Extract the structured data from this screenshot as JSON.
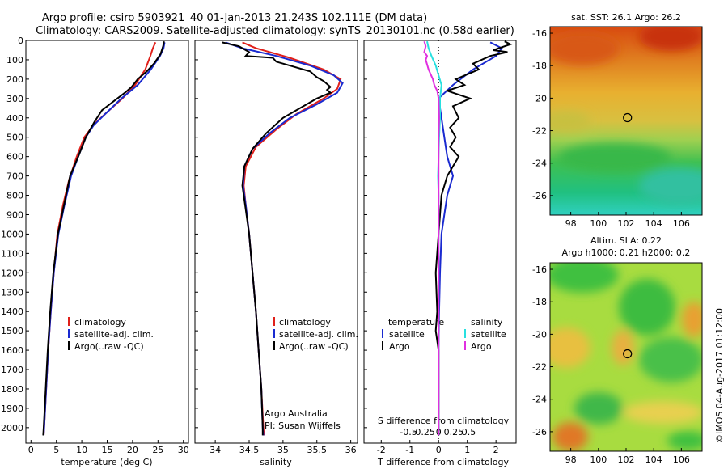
{
  "header": {
    "line1": "Argo profile: csiro 5903921_40 01-Jan-2013 21.243S 102.111E (DM data)",
    "line2": "Climatology: CARS2009. Satellite-adjusted climatology: synTS_20130101.nc (0.58d earlier)"
  },
  "side_label": "©IMOS 04-Aug-2017 01:12:00",
  "colors": {
    "climatology": "#e0201a",
    "satellite": "#1a2ad0",
    "argo": "#000000",
    "sat_salinity": "#28e0e0",
    "argo_salinity": "#e030e0"
  },
  "chart_data": [
    {
      "type": "line",
      "id": "temperature",
      "xlabel": "temperature (deg C)",
      "xlim": [
        -1,
        31
      ],
      "ylim": [
        2080,
        0
      ],
      "y_ticks": [
        0,
        100,
        200,
        300,
        400,
        500,
        600,
        700,
        800,
        900,
        1000,
        1100,
        1200,
        1300,
        1400,
        1500,
        1600,
        1700,
        1800,
        1900,
        2000
      ],
      "x_ticks": [
        0,
        5,
        10,
        15,
        20,
        25,
        30
      ],
      "legend": [
        "climatology",
        "satellite-adj. clim.",
        "Argo(..raw -QC)"
      ],
      "series": [
        {
          "name": "climatology",
          "points": [
            [
              24.5,
              10
            ],
            [
              24,
              40
            ],
            [
              23.5,
              80
            ],
            [
              22.5,
              150
            ],
            [
              20.5,
              230
            ],
            [
              18,
              300
            ],
            [
              15,
              370
            ],
            [
              12.5,
              430
            ],
            [
              10.5,
              500
            ],
            [
              9,
              600
            ],
            [
              7.5,
              720
            ],
            [
              6.3,
              850
            ],
            [
              5.2,
              1000
            ],
            [
              4.5,
              1200
            ],
            [
              3.9,
              1400
            ],
            [
              3.4,
              1600
            ],
            [
              3,
              1800
            ],
            [
              2.6,
              2000
            ],
            [
              2.5,
              2040
            ]
          ]
        },
        {
          "name": "satellite-adj. clim.",
          "points": [
            [
              26.3,
              10
            ],
            [
              26.1,
              40
            ],
            [
              25.4,
              80
            ],
            [
              23.6,
              150
            ],
            [
              21,
              230
            ],
            [
              17.8,
              300
            ],
            [
              14.6,
              380
            ],
            [
              12.3,
              440
            ],
            [
              10.8,
              500
            ],
            [
              9.3,
              600
            ],
            [
              7.9,
              700
            ],
            [
              6.6,
              850
            ],
            [
              5.4,
              1000
            ],
            [
              4.5,
              1200
            ],
            [
              3.9,
              1400
            ],
            [
              3.4,
              1600
            ],
            [
              3,
              1800
            ],
            [
              2.6,
              2000
            ],
            [
              2.5,
              2040
            ]
          ]
        },
        {
          "name": "Argo(..raw -QC)",
          "points": [
            [
              26.2,
              5
            ],
            [
              26,
              30
            ],
            [
              25.5,
              70
            ],
            [
              24.2,
              120
            ],
            [
              22.8,
              160
            ],
            [
              21,
              200
            ],
            [
              19.8,
              240
            ],
            [
              18.5,
              270
            ],
            [
              16.5,
              310
            ],
            [
              14,
              360
            ],
            [
              12.5,
              420
            ],
            [
              10.8,
              500
            ],
            [
              9.3,
              600
            ],
            [
              7.7,
              700
            ],
            [
              6.5,
              850
            ],
            [
              5.3,
              1000
            ],
            [
              4.4,
              1200
            ],
            [
              3.8,
              1400
            ],
            [
              3.3,
              1600
            ],
            [
              2.9,
              1800
            ],
            [
              2.5,
              2000
            ],
            [
              2.4,
              2040
            ]
          ]
        }
      ]
    },
    {
      "type": "line",
      "id": "salinity",
      "xlabel": "salinity",
      "xlim": [
        33.7,
        36.1
      ],
      "ylim": [
        2080,
        0
      ],
      "x_ticks": [
        34,
        34.5,
        35,
        35.5,
        36
      ],
      "legend": [
        "climatology",
        "satellite-adj. clim.",
        "Argo(..raw -QC)"
      ],
      "annotation": [
        "Argo Australia",
        "PI: Susan Wijffels"
      ],
      "series": [
        {
          "name": "climatology",
          "points": [
            [
              34.4,
              10
            ],
            [
              34.6,
              40
            ],
            [
              35.1,
              90
            ],
            [
              35.6,
              150
            ],
            [
              35.85,
              200
            ],
            [
              35.8,
              250
            ],
            [
              35.6,
              300
            ],
            [
              35.2,
              380
            ],
            [
              34.9,
              460
            ],
            [
              34.6,
              550
            ],
            [
              34.45,
              650
            ],
            [
              34.42,
              750
            ],
            [
              34.45,
              850
            ],
            [
              34.5,
              1000
            ],
            [
              34.55,
              1200
            ],
            [
              34.6,
              1400
            ],
            [
              34.64,
              1600
            ],
            [
              34.68,
              1800
            ],
            [
              34.71,
              2000
            ],
            [
              34.72,
              2040
            ]
          ]
        },
        {
          "name": "satellite-adj. clim.",
          "points": [
            [
              34.15,
              10
            ],
            [
              34.4,
              40
            ],
            [
              34.9,
              80
            ],
            [
              35.4,
              130
            ],
            [
              35.75,
              180
            ],
            [
              35.88,
              220
            ],
            [
              35.8,
              270
            ],
            [
              35.5,
              330
            ],
            [
              35.1,
              400
            ],
            [
              34.8,
              480
            ],
            [
              34.55,
              560
            ],
            [
              34.43,
              650
            ],
            [
              34.41,
              750
            ],
            [
              34.45,
              850
            ],
            [
              34.5,
              1000
            ],
            [
              34.55,
              1200
            ],
            [
              34.6,
              1400
            ],
            [
              34.64,
              1600
            ],
            [
              34.68,
              1800
            ],
            [
              34.7,
              2000
            ],
            [
              34.71,
              2040
            ]
          ]
        },
        {
          "name": "Argo(..raw -QC)",
          "points": [
            [
              34.1,
              10
            ],
            [
              34.35,
              30
            ],
            [
              34.5,
              60
            ],
            [
              34.45,
              80
            ],
            [
              34.85,
              90
            ],
            [
              34.9,
              110
            ],
            [
              35.1,
              130
            ],
            [
              35.4,
              160
            ],
            [
              35.5,
              190
            ],
            [
              35.6,
              210
            ],
            [
              35.7,
              240
            ],
            [
              35.65,
              255
            ],
            [
              35.7,
              270
            ],
            [
              35.5,
              300
            ],
            [
              35.3,
              340
            ],
            [
              35,
              400
            ],
            [
              34.75,
              480
            ],
            [
              34.55,
              560
            ],
            [
              34.43,
              650
            ],
            [
              34.4,
              750
            ],
            [
              34.44,
              850
            ],
            [
              34.5,
              1000
            ],
            [
              34.55,
              1200
            ],
            [
              34.6,
              1400
            ],
            [
              34.64,
              1600
            ],
            [
              34.68,
              1800
            ],
            [
              34.7,
              2000
            ],
            [
              34.7,
              2040
            ]
          ]
        }
      ]
    },
    {
      "type": "line",
      "id": "difference",
      "xlabel": "T difference from climatology",
      "xlabel_top": "S difference from climatology",
      "xlim": [
        -2.6,
        2.7
      ],
      "ylim": [
        2080,
        0
      ],
      "x_ticks": [
        -2,
        -1,
        0,
        1,
        2
      ],
      "s_ticks": [
        "-0.5",
        "-0.25",
        "0",
        "0.25",
        "0.5"
      ],
      "legend_temperature": [
        "temperature",
        "satellite",
        "Argo"
      ],
      "legend_salinity": [
        "salinity",
        "satellite",
        "Argo"
      ],
      "series": [
        {
          "name": "temperature satellite",
          "points": [
            [
              1.8,
              10
            ],
            [
              2.2,
              40
            ],
            [
              2,
              80
            ],
            [
              1.2,
              150
            ],
            [
              0.5,
              230
            ],
            [
              0,
              300
            ],
            [
              0.1,
              400
            ],
            [
              0.2,
              500
            ],
            [
              0.3,
              600
            ],
            [
              0.5,
              700
            ],
            [
              0.3,
              800
            ],
            [
              0.2,
              900
            ],
            [
              0.1,
              1000
            ],
            [
              0.05,
              1200
            ],
            [
              0.02,
              1400
            ],
            [
              0,
              1600
            ],
            [
              0,
              1800
            ],
            [
              0,
              2000
            ],
            [
              0,
              2040
            ]
          ]
        },
        {
          "name": "temperature Argo",
          "points": [
            [
              2.3,
              5
            ],
            [
              2.5,
              20
            ],
            [
              1.9,
              50
            ],
            [
              2.4,
              60
            ],
            [
              1.8,
              80
            ],
            [
              1.2,
              120
            ],
            [
              1.4,
              150
            ],
            [
              0.6,
              200
            ],
            [
              0.9,
              230
            ],
            [
              0.3,
              260
            ],
            [
              1.1,
              300
            ],
            [
              0.5,
              340
            ],
            [
              0.7,
              400
            ],
            [
              0.4,
              450
            ],
            [
              0.6,
              500
            ],
            [
              0.4,
              550
            ],
            [
              0.7,
              600
            ],
            [
              0.5,
              650
            ],
            [
              0.3,
              700
            ],
            [
              0.1,
              800
            ],
            [
              0.05,
              900
            ],
            [
              0,
              1000
            ],
            [
              -0.1,
              1200
            ],
            [
              -0.05,
              1400
            ],
            [
              -0.1,
              1500
            ],
            [
              0,
              1600
            ],
            [
              0,
              1800
            ],
            [
              0,
              2000
            ],
            [
              0,
              2040
            ]
          ]
        },
        {
          "name": "salinity satellite",
          "points": [
            [
              -0.4,
              5
            ],
            [
              -0.35,
              40
            ],
            [
              -0.25,
              80
            ],
            [
              -0.1,
              130
            ],
            [
              0,
              180
            ],
            [
              0.1,
              230
            ],
            [
              0.05,
              300
            ],
            [
              0.05,
              400
            ],
            [
              0.02,
              500
            ],
            [
              0,
              600
            ],
            [
              -0.02,
              700
            ],
            [
              0,
              800
            ],
            [
              0,
              900
            ],
            [
              0,
              1000
            ],
            [
              0,
              1200
            ],
            [
              0,
              1400
            ],
            [
              0,
              1600
            ],
            [
              0,
              1800
            ],
            [
              0,
              2000
            ],
            [
              0,
              2040
            ]
          ]
        },
        {
          "name": "salinity Argo",
          "points": [
            [
              -0.5,
              5
            ],
            [
              -0.45,
              30
            ],
            [
              -0.5,
              60
            ],
            [
              -0.4,
              80
            ],
            [
              -0.45,
              100
            ],
            [
              -0.35,
              150
            ],
            [
              -0.2,
              200
            ],
            [
              -0.15,
              230
            ],
            [
              -0.05,
              260
            ],
            [
              0,
              300
            ],
            [
              0.02,
              400
            ],
            [
              0,
              500
            ],
            [
              0,
              600
            ],
            [
              0,
              700
            ],
            [
              0,
              800
            ],
            [
              0,
              900
            ],
            [
              0,
              1000
            ],
            [
              0,
              1200
            ],
            [
              0,
              1400
            ],
            [
              0,
              1600
            ],
            [
              0,
              1800
            ],
            [
              0,
              2000
            ],
            [
              0,
              2040
            ]
          ]
        }
      ]
    },
    {
      "type": "heatmap",
      "id": "sst_map",
      "title": "sat. SST: 26.1  Argo: 26.2",
      "xlim": [
        96.5,
        107.5
      ],
      "ylim": [
        -27.2,
        -15.6
      ],
      "x_ticks": [
        98,
        100,
        102,
        104,
        106
      ],
      "y_ticks": [
        -16,
        -18,
        -20,
        -22,
        -24,
        -26
      ],
      "marker": [
        102.1,
        -21.2
      ]
    },
    {
      "type": "heatmap",
      "id": "sla_map",
      "title": "Altim. SLA: 0.22",
      "subtitle": "Argo h1000: 0.21  h2000: 0.2",
      "xlim": [
        96.5,
        107.5
      ],
      "ylim": [
        -27.2,
        -15.6
      ],
      "x_ticks": [
        98,
        100,
        102,
        104,
        106
      ],
      "y_ticks": [
        -16,
        -18,
        -20,
        -22,
        -24,
        -26
      ],
      "marker": [
        102.1,
        -21.2
      ]
    }
  ]
}
